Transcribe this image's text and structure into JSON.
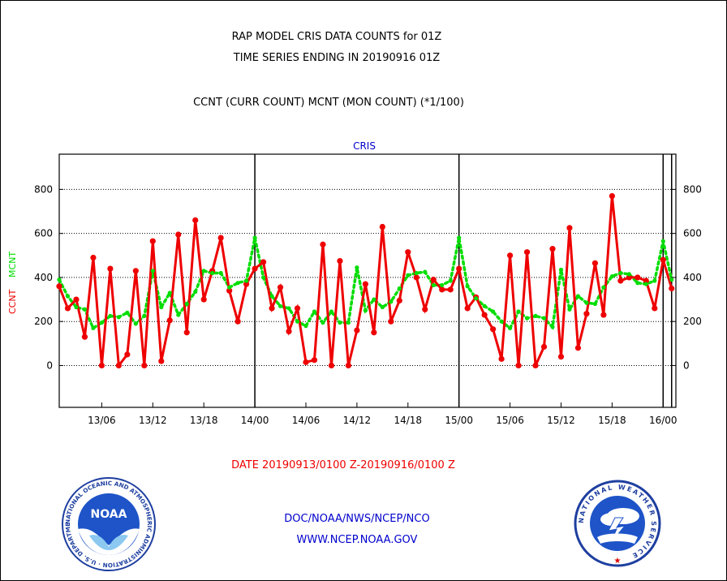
{
  "header": {
    "title_line1": "RAP MODEL CRIS DATA COUNTS for 01Z",
    "title_line2": "TIME SERIES ENDING IN 20190916 01Z",
    "subtitle": "CCNT (CURR COUNT) MCNT (MON COUNT) (*1/100)"
  },
  "footer": {
    "date_range": "DATE 20190913/0100 Z-20190916/0100 Z",
    "org": "DOC/NOAA/NWS/NCEP/NCO",
    "url": "WWW.NCEP.NOAA.GOV"
  },
  "logos": {
    "noaa_text": "NOAA",
    "noaa_ring": "NATIONAL OCEANIC AND ATMOSPHERIC ADMINISTRATION · U.S. DEPARTMENT OF COMMERCE ·",
    "nws_ring": "NATIONAL WEATHER SERVICE"
  },
  "colors": {
    "ccnt": "#ee0000",
    "mcnt": "#00dd00",
    "text_blue": "#0000cc",
    "axis": "#000000"
  },
  "chart_data": {
    "type": "line",
    "title": "CRIS",
    "ylabel_left_1": "CCNT",
    "ylabel_left_2": "MCNT",
    "ylim": [
      -190,
      960
    ],
    "yticks": [
      0,
      200,
      400,
      600,
      800
    ],
    "grid": true,
    "xlim": [
      1,
      73.5
    ],
    "xticks": [
      {
        "label": "13/06",
        "x": 6
      },
      {
        "label": "13/12",
        "x": 12
      },
      {
        "label": "13/18",
        "x": 18
      },
      {
        "label": "14/00",
        "x": 24
      },
      {
        "label": "14/06",
        "x": 30
      },
      {
        "label": "14/12",
        "x": 36
      },
      {
        "label": "14/18",
        "x": 42
      },
      {
        "label": "15/00",
        "x": 48
      },
      {
        "label": "15/06",
        "x": 54
      },
      {
        "label": "15/12",
        "x": 60
      },
      {
        "label": "15/18",
        "x": 66
      },
      {
        "label": "16/00",
        "x": 72
      }
    ],
    "day_boundaries": [
      24,
      48,
      72
    ],
    "series": [
      {
        "name": "CCNT",
        "color": "#ee0000",
        "x": [
          1,
          2,
          3,
          4,
          5,
          6,
          7,
          8,
          9,
          10,
          11,
          12,
          13,
          14,
          15,
          16,
          17,
          18,
          19,
          20,
          21,
          22,
          23,
          24,
          25,
          26,
          27,
          28,
          29,
          30,
          31,
          32,
          33,
          34,
          35,
          36,
          37,
          38,
          39,
          40,
          41,
          42,
          43,
          44,
          45,
          46,
          47,
          48,
          49,
          50,
          51,
          52,
          53,
          54,
          55,
          56,
          57,
          58,
          59,
          60,
          61,
          62,
          63,
          64,
          65,
          66,
          67,
          68,
          69,
          70,
          71,
          72,
          73
        ],
        "values": [
          360,
          260,
          300,
          130,
          490,
          0,
          440,
          0,
          50,
          430,
          0,
          565,
          20,
          205,
          595,
          150,
          660,
          300,
          430,
          580,
          340,
          200,
          370,
          440,
          470,
          260,
          355,
          155,
          260,
          15,
          25,
          550,
          0,
          475,
          0,
          160,
          370,
          150,
          630,
          200,
          295,
          515,
          400,
          255,
          390,
          345,
          345,
          440,
          260,
          310,
          230,
          165,
          30,
          500,
          0,
          515,
          0,
          85,
          530,
          40,
          625,
          80,
          235,
          465,
          230,
          770,
          385,
          400,
          400,
          385,
          260,
          480,
          350
        ]
      },
      {
        "name": "MCNT",
        "color": "#00dd00",
        "x": [
          1,
          2,
          3,
          4,
          5,
          6,
          7,
          8,
          9,
          10,
          11,
          12,
          13,
          14,
          15,
          16,
          17,
          18,
          19,
          20,
          21,
          22,
          23,
          24,
          25,
          26,
          27,
          28,
          29,
          30,
          31,
          32,
          33,
          34,
          35,
          36,
          37,
          38,
          39,
          40,
          41,
          42,
          43,
          44,
          45,
          46,
          47,
          48,
          49,
          50,
          51,
          52,
          53,
          54,
          55,
          56,
          57,
          58,
          59,
          60,
          61,
          62,
          63,
          64,
          65,
          66,
          67,
          68,
          69,
          70,
          71,
          72,
          73
        ],
        "values": [
          390,
          315,
          265,
          255,
          170,
          195,
          225,
          220,
          240,
          190,
          225,
          430,
          265,
          330,
          230,
          280,
          335,
          430,
          420,
          420,
          355,
          375,
          385,
          580,
          400,
          315,
          270,
          260,
          200,
          180,
          245,
          195,
          245,
          195,
          195,
          445,
          250,
          300,
          265,
          290,
          350,
          410,
          420,
          425,
          365,
          365,
          385,
          580,
          360,
          305,
          270,
          245,
          200,
          170,
          245,
          215,
          225,
          215,
          175,
          435,
          255,
          315,
          285,
          280,
          355,
          405,
          420,
          415,
          375,
          370,
          385,
          565,
          390
        ]
      }
    ]
  }
}
